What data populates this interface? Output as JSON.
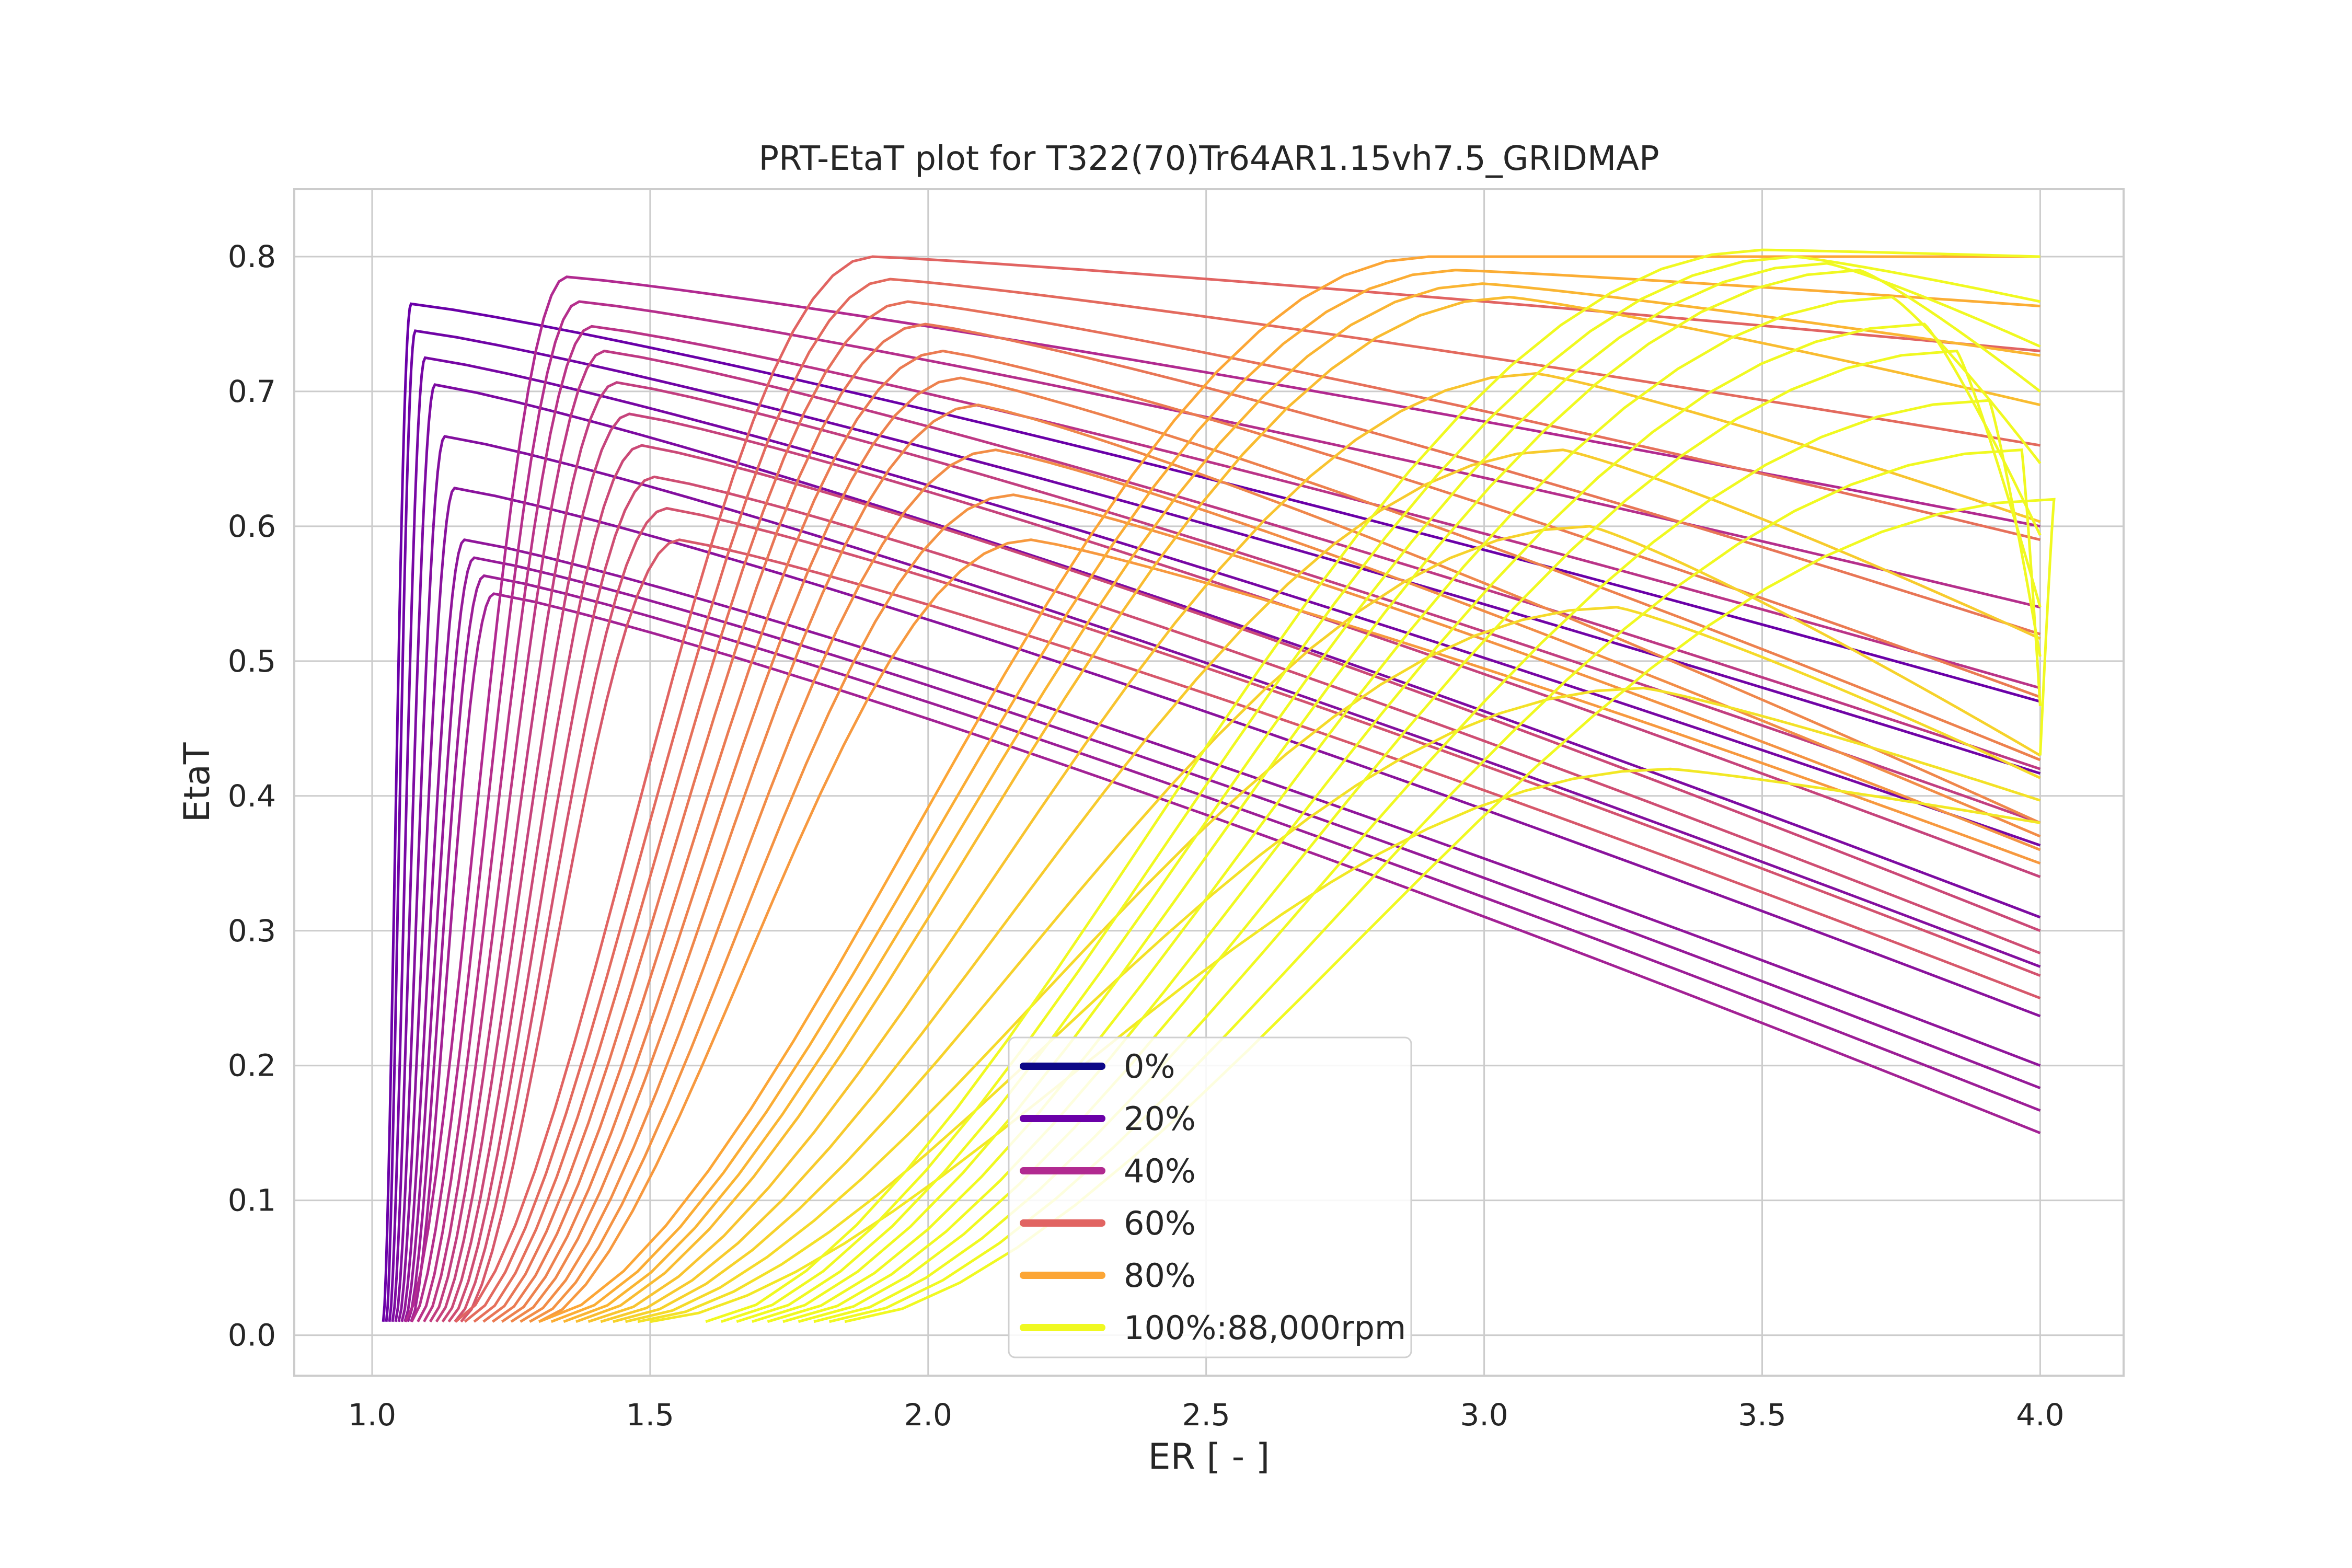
{
  "chart_data": {
    "type": "line",
    "title": "PRT-EtaT plot for T322(70)Tr64AR1.15vh7.5_GRIDMAP",
    "xlabel": "ER [ - ]",
    "ylabel": "EtaT",
    "xlim": [
      0.86,
      4.15
    ],
    "ylim": [
      -0.03,
      0.85
    ],
    "x_ticks": [
      "1.0",
      "1.5",
      "2.0",
      "2.5",
      "3.0",
      "3.5",
      "4.0"
    ],
    "y_ticks": [
      "0.0",
      "0.1",
      "0.2",
      "0.3",
      "0.4",
      "0.5",
      "0.6",
      "0.7",
      "0.8"
    ],
    "grid": true,
    "legend_position": "lower-center",
    "legend": [
      {
        "label": "0%",
        "color": "#0d0887"
      },
      {
        "label": "20%",
        "color": "#6a00a8"
      },
      {
        "label": "40%",
        "color": "#b12a90"
      },
      {
        "label": "60%",
        "color": "#e16462"
      },
      {
        "label": "80%",
        "color": "#fca636"
      },
      {
        "label": "100%:88,000rpm",
        "color": "#f0f921"
      }
    ],
    "colormap": "plasma",
    "curve_families": [
      {
        "speed_fraction": 0.2,
        "x_start": 1.02,
        "x_peak": 1.06,
        "x_end": 4.0,
        "peak_values": [
          0.765,
          0.705,
          0.59,
          0.55
        ],
        "end_values": [
          0.47,
          0.31,
          0.2,
          0.15
        ]
      },
      {
        "speed_fraction": 0.4,
        "x_start": 1.06,
        "x_peak": 1.35,
        "x_end": 4.0,
        "peak_values": [
          0.785,
          0.73,
          0.66,
          0.59
        ],
        "end_values": [
          0.6,
          0.42,
          0.3,
          0.25
        ]
      },
      {
        "speed_fraction": 0.6,
        "x_start": 1.15,
        "x_peak": 1.9,
        "x_end": 4.0,
        "peak_values": [
          0.8,
          0.75,
          0.69,
          0.59
        ],
        "end_values": [
          0.73,
          0.52,
          0.38,
          0.35
        ]
      },
      {
        "speed_fraction": 0.8,
        "x_start": 1.3,
        "x_peak": 2.9,
        "x_end": 4.0,
        "peak_values": [
          0.8,
          0.77,
          0.6,
          0.42
        ],
        "end_values": [
          0.8,
          0.69,
          0.43,
          0.38
        ]
      },
      {
        "speed_fraction": 1.0,
        "x_start": 1.6,
        "x_peak": 3.5,
        "x_end": 4.0,
        "peak_values": [
          0.805,
          0.79,
          0.73,
          0.62
        ],
        "end_values": [
          0.8,
          0.7,
          0.54,
          0.43
        ]
      }
    ]
  }
}
